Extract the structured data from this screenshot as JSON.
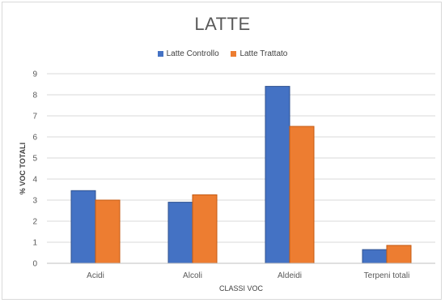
{
  "chart_data": {
    "type": "bar",
    "title": "LATTE",
    "xlabel": "CLASSI VOC",
    "ylabel": "% VOC TOTALI",
    "categories": [
      "Acidi",
      "Alcoli",
      "Aldeidi",
      "Terpeni totali"
    ],
    "series": [
      {
        "name": "Latte  Controllo",
        "values": [
          3.45,
          2.9,
          8.4,
          0.65
        ],
        "color": "#4472C4"
      },
      {
        "name": "Latte Trattato",
        "values": [
          3.0,
          3.25,
          6.5,
          0.85
        ],
        "color": "#ED7D31"
      }
    ],
    "ylim": [
      0,
      9
    ],
    "yticks": [
      0,
      1,
      2,
      3,
      4,
      5,
      6,
      7,
      8,
      9
    ],
    "grid": true,
    "legend_position": "top"
  }
}
